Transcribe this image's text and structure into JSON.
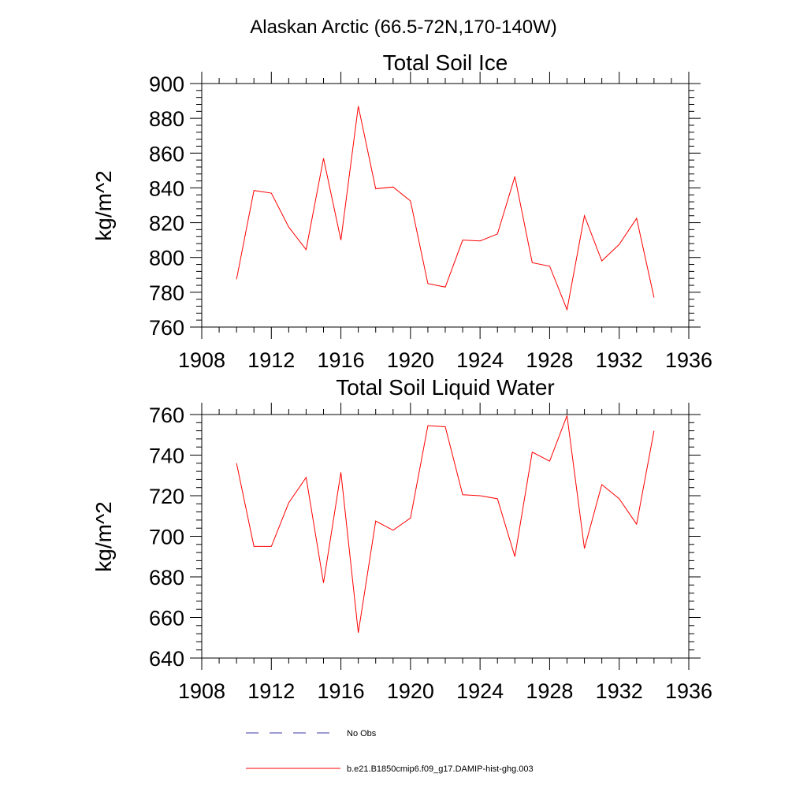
{
  "figure": {
    "title": "Alaskan Arctic (66.5-72N,170-140W)"
  },
  "chart_data": [
    {
      "type": "line",
      "title": "Total Soil Ice",
      "xlabel": "",
      "ylabel": "kg/m^2",
      "xlim": [
        1908,
        1936
      ],
      "ylim": [
        760,
        900
      ],
      "xticks": [
        1908,
        1912,
        1916,
        1920,
        1924,
        1928,
        1932,
        1936
      ],
      "yticks": [
        760,
        780,
        800,
        820,
        840,
        860,
        880,
        900
      ],
      "x": [
        1910,
        1911,
        1912,
        1913,
        1914,
        1915,
        1916,
        1917,
        1918,
        1919,
        1920,
        1921,
        1922,
        1923,
        1924,
        1925,
        1926,
        1927,
        1928,
        1929,
        1930,
        1931,
        1932,
        1933,
        1934
      ],
      "series": [
        {
          "name": "b.e21.B1850cmip6.f09_g17.DAMIP-hist-ghg.003",
          "color": "#ff0000",
          "values": [
            787.5,
            838.5,
            837,
            817.5,
            804.5,
            857,
            810,
            887,
            839.5,
            840.5,
            832.5,
            785,
            783,
            810,
            809.5,
            813.5,
            846.5,
            797,
            795,
            770,
            824,
            798,
            807.5,
            822.5,
            777
          ]
        }
      ],
      "grid": false
    },
    {
      "type": "line",
      "title": "Total Soil Liquid Water",
      "xlabel": "",
      "ylabel": "kg/m^2",
      "xlim": [
        1908,
        1936
      ],
      "ylim": [
        640,
        760
      ],
      "xticks": [
        1908,
        1912,
        1916,
        1920,
        1924,
        1928,
        1932,
        1936
      ],
      "yticks": [
        640,
        660,
        680,
        700,
        720,
        740,
        760
      ],
      "x": [
        1910,
        1911,
        1912,
        1913,
        1914,
        1915,
        1916,
        1917,
        1918,
        1919,
        1920,
        1921,
        1922,
        1923,
        1924,
        1925,
        1926,
        1927,
        1928,
        1929,
        1930,
        1931,
        1932,
        1933,
        1934
      ],
      "series": [
        {
          "name": "b.e21.B1850cmip6.f09_g17.DAMIP-hist-ghg.003",
          "color": "#ff0000",
          "values": [
            736,
            695,
            695,
            716.5,
            729,
            677,
            731.5,
            652.5,
            707.5,
            703,
            709,
            754.5,
            754,
            720.5,
            720,
            718.5,
            690,
            741.5,
            737,
            759.5,
            694,
            725.5,
            718.5,
            706,
            752
          ]
        }
      ],
      "grid": false
    }
  ],
  "legend": {
    "placement": "bottom",
    "entries": [
      {
        "label": "No Obs",
        "color": "#3a3aa0",
        "style": "dashed"
      },
      {
        "label": "b.e21.B1850cmip6.f09_g17.DAMIP-hist-ghg.003",
        "color": "#ff0000",
        "style": "solid"
      }
    ]
  }
}
